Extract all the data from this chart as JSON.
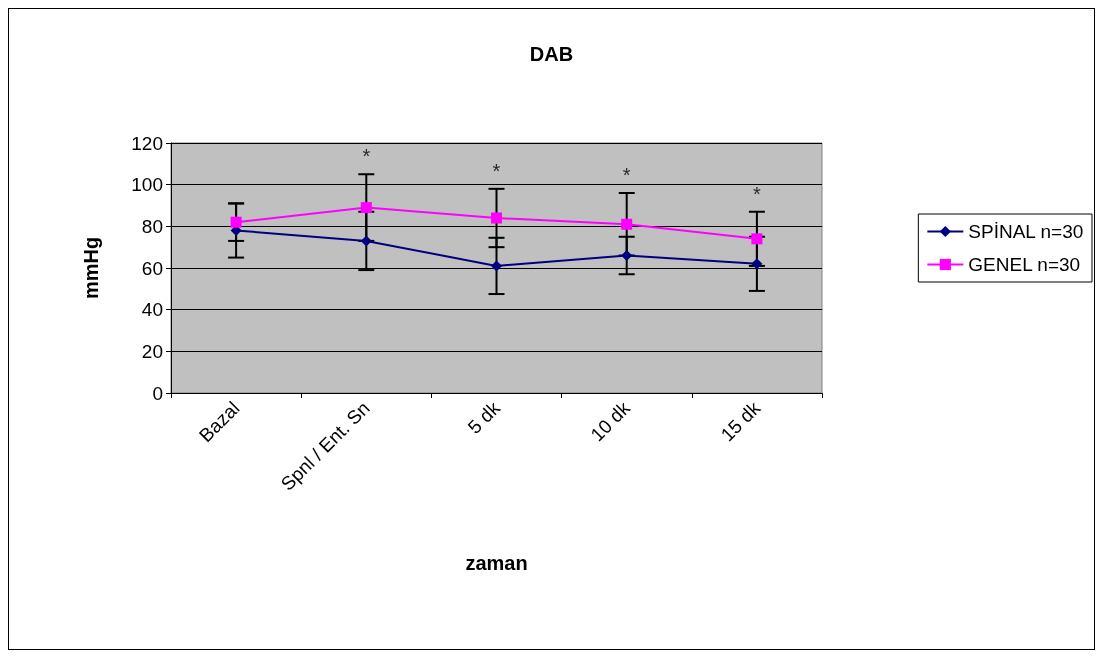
{
  "chart_data": {
    "type": "line",
    "title": "DAB",
    "xlabel": "zaman",
    "ylabel": "mmHg",
    "categories": [
      "Bazal",
      "Spnl / Ent. Sn",
      "5 dk",
      "10 dk",
      "15 dk"
    ],
    "series": [
      {
        "name": "SPİNAL n=30",
        "color": "#000080",
        "marker": "diamond",
        "values": [
          78,
          73,
          61,
          66,
          62
        ],
        "errors": [
          [
            65,
            91
          ],
          [
            59,
            87
          ],
          [
            47.5,
            74.5
          ],
          [
            57,
            75
          ],
          [
            49,
            75
          ]
        ]
      },
      {
        "name": "GENEL n=30",
        "color": "#ff00ff",
        "marker": "square",
        "values": [
          82,
          89,
          84,
          81,
          74
        ],
        "errors": [
          [
            73,
            91
          ],
          [
            73,
            105
          ],
          [
            70,
            98
          ],
          [
            66,
            96
          ],
          [
            61,
            87
          ]
        ]
      }
    ],
    "ylim": [
      0,
      120
    ],
    "yticks": [
      0,
      20,
      40,
      60,
      80,
      100,
      120
    ],
    "grid": "y",
    "legend": "right",
    "annotations": [
      "*",
      "*",
      "*",
      "*"
    ]
  }
}
